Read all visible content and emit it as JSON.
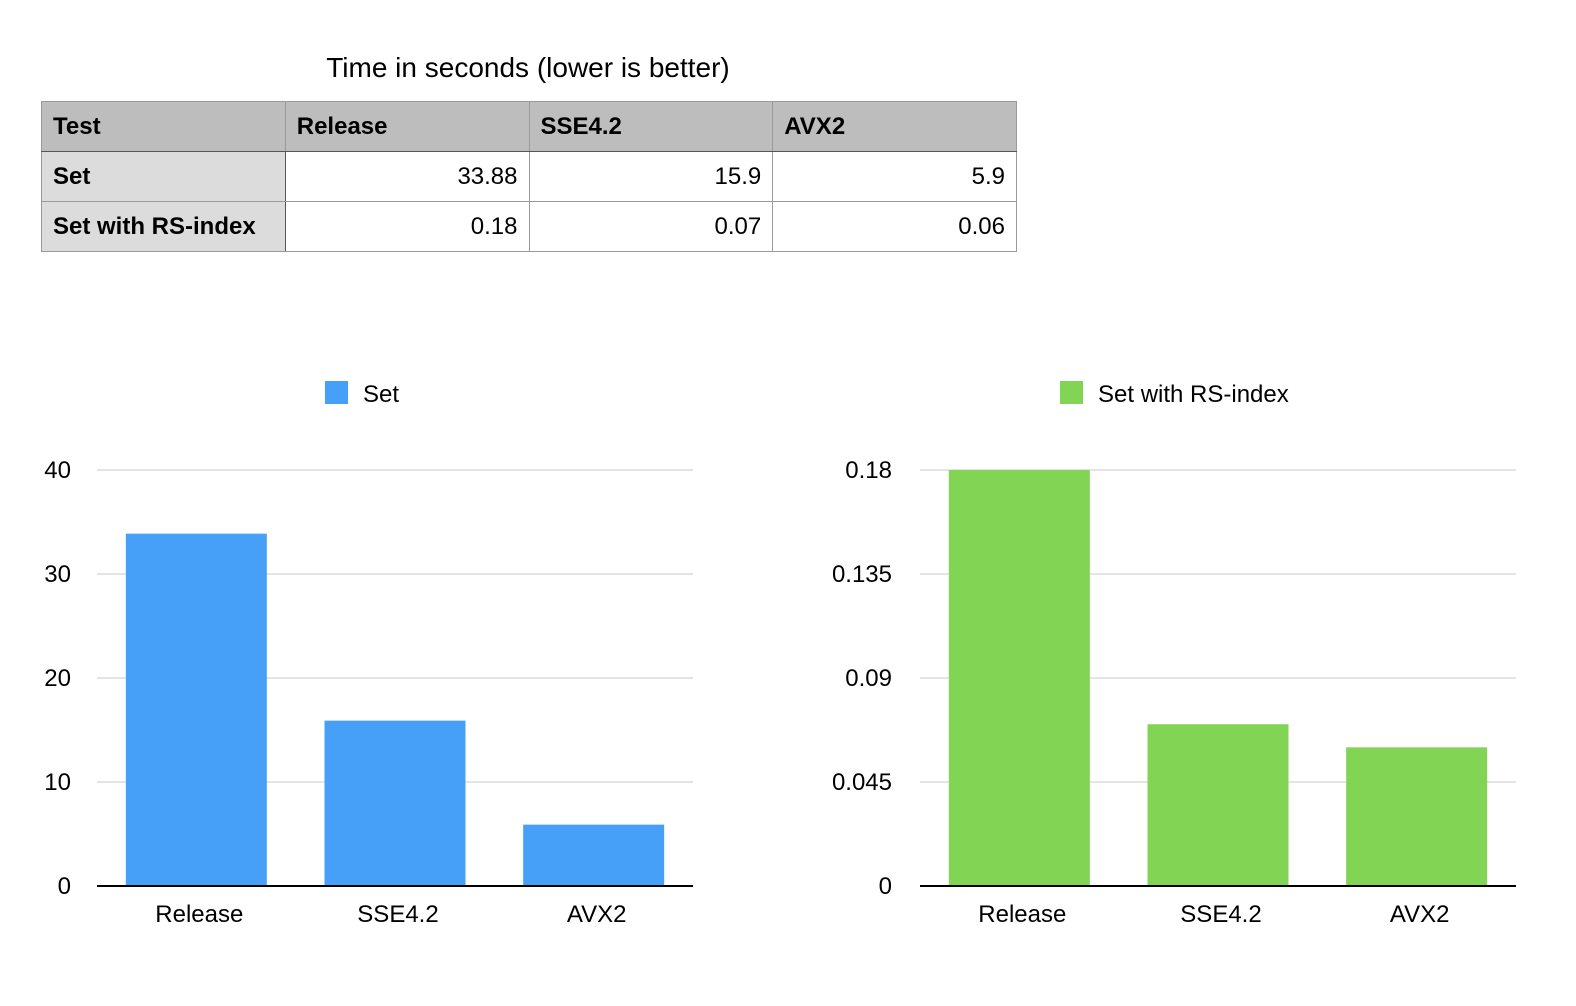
{
  "title": "Time in seconds (lower is better)",
  "table": {
    "headers": [
      "Test",
      "Release",
      "SSE4.2",
      "AVX2"
    ],
    "rows": [
      {
        "label": "Set",
        "values": [
          "33.88",
          "15.9",
          "5.9"
        ]
      },
      {
        "label": "Set with RS-index",
        "values": [
          "0.18",
          "0.07",
          "0.06"
        ]
      }
    ]
  },
  "chart_data": [
    {
      "type": "bar",
      "categories": [
        "Release",
        "SSE4.2",
        "AVX2"
      ],
      "series": [
        {
          "name": "Set",
          "values": [
            33.88,
            15.9,
            5.9
          ],
          "color": "#47a0f7"
        }
      ],
      "ylim": [
        0,
        40
      ],
      "yticks": [
        0,
        10,
        20,
        30,
        40
      ],
      "ytick_labels": [
        "0",
        "10",
        "20",
        "30",
        "40"
      ],
      "grid": true,
      "legend": "top"
    },
    {
      "type": "bar",
      "categories": [
        "Release",
        "SSE4.2",
        "AVX2"
      ],
      "series": [
        {
          "name": "Set with RS-index",
          "values": [
            0.18,
            0.07,
            0.06
          ],
          "color": "#82d454"
        }
      ],
      "ylim": [
        0,
        0.18
      ],
      "yticks": [
        0,
        0.045,
        0.09,
        0.135,
        0.18
      ],
      "ytick_labels": [
        "0",
        "0.045",
        "0.09",
        "0.135",
        "0.18"
      ],
      "grid": true,
      "legend": "top"
    }
  ]
}
